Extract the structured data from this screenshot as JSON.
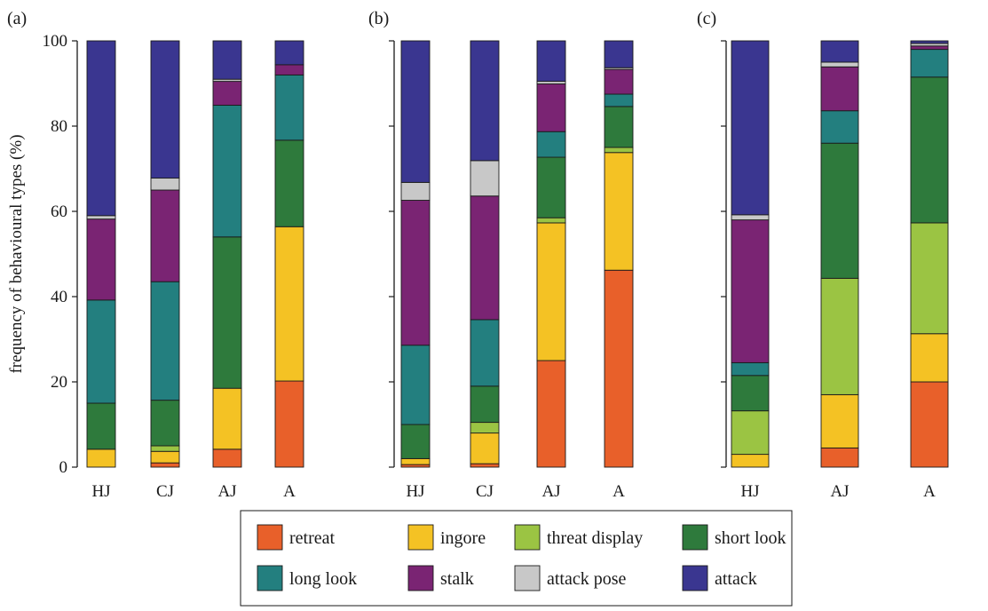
{
  "chart_data": {
    "type": "bar",
    "stacked": true,
    "ylabel": "frequency of behavioural types (%)",
    "ylim": [
      0,
      100
    ],
    "yticks": [
      0,
      20,
      40,
      60,
      80,
      100
    ],
    "grid": false,
    "legend_placement": "bottom",
    "series_names": [
      "retreat",
      "ingore",
      "threat display",
      "short look",
      "long look",
      "stalk",
      "attack pose",
      "attack"
    ],
    "colors": {
      "retreat": "#e8602a",
      "ingore": "#f4c224",
      "threat display": "#9bc443",
      "short look": "#2e7a3c",
      "long look": "#237f7f",
      "stalk": "#7a2473",
      "attack pose": "#c8c8c8",
      "attack": "#3a3690"
    },
    "panels": [
      {
        "label": "(a)",
        "categories": [
          "HJ",
          "CJ",
          "AJ",
          "A"
        ],
        "series": [
          {
            "name": "retreat",
            "values": [
              0,
              1,
              4.2,
              20.2
            ]
          },
          {
            "name": "ingore",
            "values": [
              4.2,
              2.7,
              14.3,
              36.2
            ]
          },
          {
            "name": "threat display",
            "values": [
              0,
              1.3,
              0,
              0
            ]
          },
          {
            "name": "short look",
            "values": [
              10.8,
              10.7,
              35.5,
              20.3
            ]
          },
          {
            "name": "long look",
            "values": [
              24.2,
              27.8,
              30.9,
              15.3
            ]
          },
          {
            "name": "stalk",
            "values": [
              19,
              21.5,
              5.6,
              2.4
            ]
          },
          {
            "name": "attack pose",
            "values": [
              0.8,
              2.8,
              0.5,
              0
            ]
          },
          {
            "name": "attack",
            "values": [
              41,
              32.2,
              9,
              5.6
            ]
          }
        ]
      },
      {
        "label": "(b)",
        "categories": [
          "HJ",
          "CJ",
          "AJ",
          "A"
        ],
        "series": [
          {
            "name": "retreat",
            "values": [
              0.6,
              0.8,
              25,
              46.2
            ]
          },
          {
            "name": "ingore",
            "values": [
              1.4,
              7.2,
              32.3,
              27.6
            ]
          },
          {
            "name": "threat display",
            "values": [
              0,
              2.5,
              1.2,
              1.2
            ]
          },
          {
            "name": "short look",
            "values": [
              8,
              8.5,
              14.2,
              9.6
            ]
          },
          {
            "name": "long look",
            "values": [
              18.6,
              15.6,
              6,
              2.9
            ]
          },
          {
            "name": "stalk",
            "values": [
              34,
              29,
              11.2,
              5.8
            ]
          },
          {
            "name": "attack pose",
            "values": [
              4.2,
              8.3,
              0.6,
              0.4
            ]
          },
          {
            "name": "attack",
            "values": [
              33.2,
              28.1,
              9.5,
              6.3
            ]
          }
        ]
      },
      {
        "label": "(c)",
        "categories": [
          "HJ",
          "AJ",
          "A"
        ],
        "series": [
          {
            "name": "retreat",
            "values": [
              0,
              4.5,
              20
            ]
          },
          {
            "name": "ingore",
            "values": [
              3,
              12.5,
              11.3
            ]
          },
          {
            "name": "threat display",
            "values": [
              10.2,
              27.3,
              26
            ]
          },
          {
            "name": "short look",
            "values": [
              8.3,
              31.7,
              34.2
            ]
          },
          {
            "name": "long look",
            "values": [
              3,
              7.6,
              6.5
            ]
          },
          {
            "name": "stalk",
            "values": [
              33.5,
              10.3,
              0.8
            ]
          },
          {
            "name": "attack pose",
            "values": [
              1.2,
              1.1,
              0.6
            ]
          },
          {
            "name": "attack",
            "values": [
              40.8,
              5,
              0.6
            ]
          }
        ]
      }
    ]
  }
}
